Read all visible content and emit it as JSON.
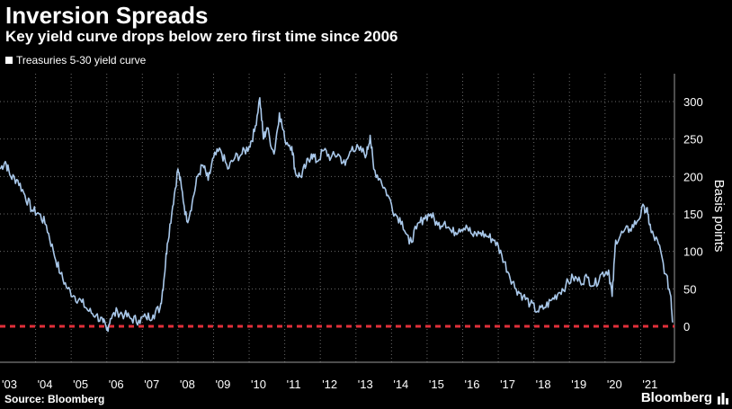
{
  "chart_data": {
    "type": "line",
    "title": "Inversion Spreads",
    "subtitle": "Key yield curve drops below zero first time since 2006",
    "ylabel": "Basis points",
    "xlabel": "",
    "ylim": [
      -10,
      335
    ],
    "xlim": [
      2003.0,
      2021.95
    ],
    "yticks": [
      0,
      50,
      100,
      150,
      200,
      250,
      300
    ],
    "xtick_labels": [
      "'03",
      "'04",
      "'05",
      "'06",
      "'07",
      "'08",
      "'09",
      "'10",
      "'11",
      "'12",
      "'13",
      "'14",
      "'15",
      "'16",
      "'17",
      "'18",
      "'19",
      "'20",
      "'21"
    ],
    "grid": true,
    "legend_position": "top-left",
    "reference_line": {
      "value": 0,
      "color": "#e0303a",
      "style": "dashed"
    },
    "series": [
      {
        "name": "Treasuries 5-30 yield curve",
        "color": "#a9c8ea",
        "x": [
          2003.0,
          2003.15,
          2003.3,
          2003.5,
          2003.7,
          2003.9,
          2004.1,
          2004.3,
          2004.5,
          2004.7,
          2004.9,
          2005.1,
          2005.3,
          2005.5,
          2005.7,
          2005.9,
          2006.0,
          2006.1,
          2006.3,
          2006.5,
          2006.7,
          2006.9,
          2007.1,
          2007.3,
          2007.5,
          2007.6,
          2007.7,
          2007.85,
          2008.0,
          2008.1,
          2008.25,
          2008.4,
          2008.55,
          2008.7,
          2008.85,
          2009.0,
          2009.2,
          2009.4,
          2009.6,
          2009.8,
          2010.0,
          2010.15,
          2010.3,
          2010.4,
          2010.5,
          2010.7,
          2010.85,
          2011.0,
          2011.2,
          2011.3,
          2011.45,
          2011.6,
          2011.75,
          2011.9,
          2012.1,
          2012.3,
          2012.5,
          2012.7,
          2012.9,
          2013.1,
          2013.3,
          2013.4,
          2013.5,
          2013.7,
          2013.9,
          2014.1,
          2014.3,
          2014.5,
          2014.7,
          2014.9,
          2015.1,
          2015.3,
          2015.5,
          2015.7,
          2015.9,
          2016.1,
          2016.3,
          2016.5,
          2016.7,
          2016.9,
          2017.1,
          2017.3,
          2017.5,
          2017.7,
          2017.9,
          2018.1,
          2018.3,
          2018.5,
          2018.7,
          2018.9,
          2019.1,
          2019.3,
          2019.5,
          2019.7,
          2019.9,
          2020.1,
          2020.2,
          2020.3,
          2020.5,
          2020.7,
          2020.9,
          2021.1,
          2021.2,
          2021.3,
          2021.5,
          2021.7,
          2021.85,
          2021.9
        ],
        "values": [
          210,
          220,
          200,
          195,
          175,
          155,
          150,
          135,
          100,
          70,
          50,
          40,
          32,
          20,
          15,
          5,
          -5,
          10,
          20,
          15,
          10,
          8,
          12,
          15,
          25,
          60,
          110,
          160,
          210,
          185,
          140,
          165,
          200,
          215,
          195,
          225,
          235,
          210,
          225,
          230,
          240,
          260,
          305,
          250,
          265,
          230,
          285,
          250,
          240,
          205,
          200,
          215,
          230,
          220,
          235,
          225,
          230,
          215,
          240,
          235,
          230,
          255,
          210,
          195,
          175,
          150,
          140,
          110,
          130,
          145,
          150,
          135,
          140,
          125,
          130,
          135,
          120,
          125,
          120,
          115,
          95,
          70,
          50,
          40,
          30,
          20,
          25,
          35,
          45,
          55,
          65,
          60,
          65,
          55,
          70,
          75,
          40,
          115,
          125,
          130,
          140,
          160,
          150,
          125,
          110,
          70,
          40,
          5
        ]
      }
    ]
  },
  "footer": {
    "source": "Source: Bloomberg",
    "brand": "Bloomberg"
  }
}
